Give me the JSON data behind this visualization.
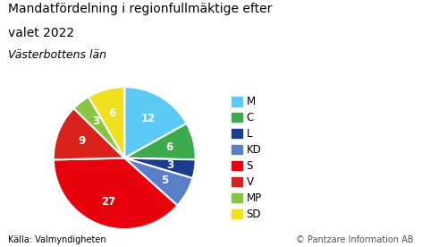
{
  "title_line1": "Mandatfördelning i regionfullmäktige efter",
  "title_line2": "valet 2022",
  "subtitle": "Västerbottens län",
  "labels": [
    "M",
    "C",
    "L",
    "KD",
    "S",
    "V",
    "MP",
    "SD"
  ],
  "values": [
    12,
    6,
    3,
    5,
    27,
    9,
    3,
    6
  ],
  "colors": [
    "#5BC8F5",
    "#3DAA4E",
    "#1A3C8F",
    "#5B7EC9",
    "#E8000D",
    "#D9221C",
    "#88C440",
    "#F0E020"
  ],
  "source_left": "Källa: Valmyndigheten",
  "source_right": "© Pantzare Information AB",
  "bg_color": "#FFFFFF",
  "text_color": "#000000",
  "footer_color": "#555555",
  "title_fontsize": 10.0,
  "subtitle_fontsize": 9.0,
  "label_fontsize": 8.5,
  "footer_fontsize": 7.0,
  "wedge_label_fontsize": 8.5,
  "legend_fontsize": 8.5
}
